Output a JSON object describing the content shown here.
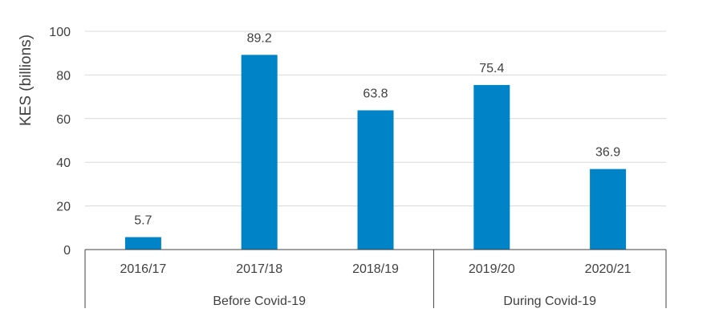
{
  "chart_data": {
    "type": "bar",
    "title": "",
    "xlabel": "",
    "ylabel": "KES (billions)",
    "ylim": [
      0,
      100
    ],
    "yticks": [
      0,
      20,
      40,
      60,
      80,
      100
    ],
    "grid": true,
    "categories": [
      "2016/17",
      "2017/18",
      "2018/19",
      "2019/20",
      "2020/21"
    ],
    "values": [
      5.7,
      89.2,
      63.8,
      75.4,
      36.9
    ],
    "data_labels": [
      "5.7",
      "89.2",
      "63.8",
      "75.4",
      "36.9"
    ],
    "groups": [
      {
        "label": "Before Covid-19",
        "categories": [
          "2016/17",
          "2017/18",
          "2018/19"
        ]
      },
      {
        "label": "During Covid-19",
        "categories": [
          "2019/20",
          "2020/21"
        ]
      }
    ],
    "bar_color": "#0084C8"
  }
}
